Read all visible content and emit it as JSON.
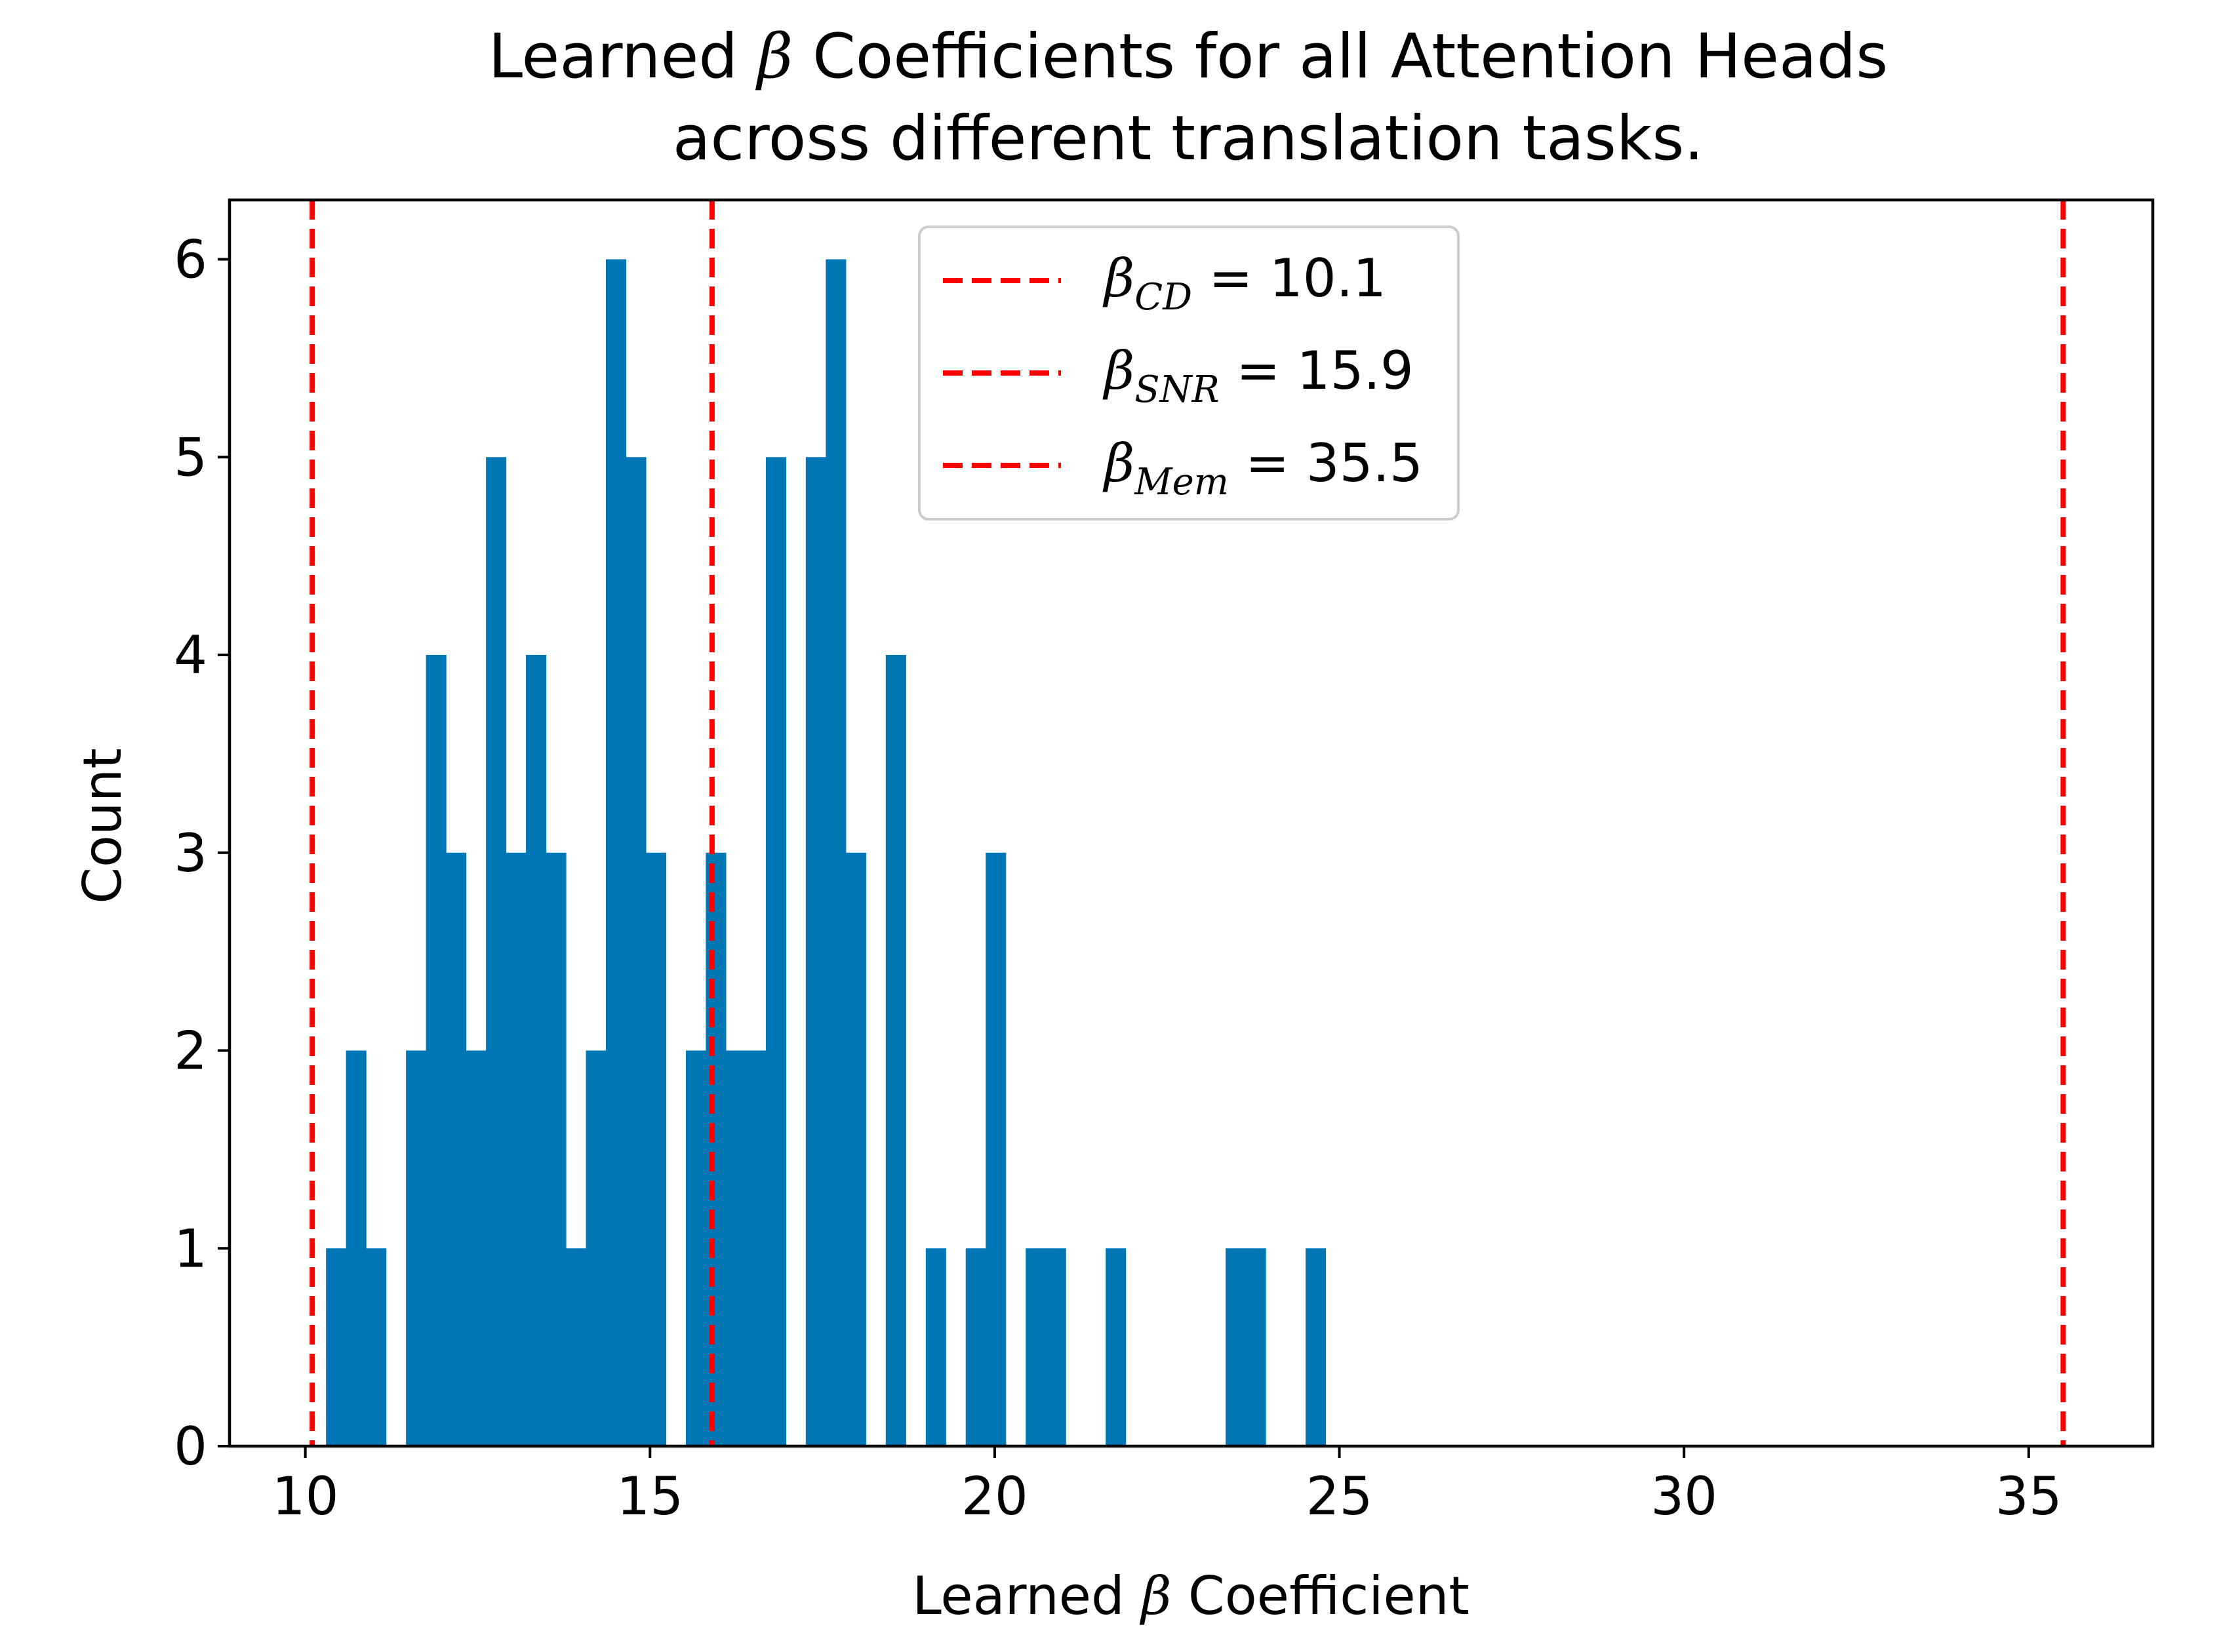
{
  "chart_data": {
    "type": "histogram",
    "title_line1_a": "Learned ",
    "title_line1_beta": "β",
    "title_line1_b": " Coefficients for all Attention Heads",
    "title_line2": "across different translation tasks.",
    "xlabel_a": "Learned ",
    "xlabel_beta": "β",
    "xlabel_b": " Coefficient",
    "ylabel": "Count",
    "xlim": [
      8.9,
      36.8
    ],
    "ylim": [
      0,
      6.3
    ],
    "xticks": [
      10,
      15,
      20,
      25,
      30,
      35
    ],
    "yticks": [
      0,
      1,
      2,
      3,
      4,
      5,
      6
    ],
    "bin_width": 0.29,
    "bar_color": "#0077b4",
    "bins": [
      {
        "x0": 10.3,
        "count": 1
      },
      {
        "x0": 10.59,
        "count": 2
      },
      {
        "x0": 10.88,
        "count": 1
      },
      {
        "x0": 11.17,
        "count": 0
      },
      {
        "x0": 11.46,
        "count": 2
      },
      {
        "x0": 11.75,
        "count": 4
      },
      {
        "x0": 12.04,
        "count": 3
      },
      {
        "x0": 12.33,
        "count": 2
      },
      {
        "x0": 12.62,
        "count": 5
      },
      {
        "x0": 12.91,
        "count": 3
      },
      {
        "x0": 13.2,
        "count": 4
      },
      {
        "x0": 13.49,
        "count": 3
      },
      {
        "x0": 13.78,
        "count": 1
      },
      {
        "x0": 14.07,
        "count": 2
      },
      {
        "x0": 14.36,
        "count": 6
      },
      {
        "x0": 14.65,
        "count": 5
      },
      {
        "x0": 14.94,
        "count": 3
      },
      {
        "x0": 15.23,
        "count": 0
      },
      {
        "x0": 15.52,
        "count": 2
      },
      {
        "x0": 15.81,
        "count": 3
      },
      {
        "x0": 16.1,
        "count": 2
      },
      {
        "x0": 16.39,
        "count": 2
      },
      {
        "x0": 16.68,
        "count": 5
      },
      {
        "x0": 16.97,
        "count": 0
      },
      {
        "x0": 17.26,
        "count": 5
      },
      {
        "x0": 17.55,
        "count": 6
      },
      {
        "x0": 17.84,
        "count": 3
      },
      {
        "x0": 18.13,
        "count": 0
      },
      {
        "x0": 18.42,
        "count": 4
      },
      {
        "x0": 18.71,
        "count": 0
      },
      {
        "x0": 19.0,
        "count": 1
      },
      {
        "x0": 19.29,
        "count": 0
      },
      {
        "x0": 19.58,
        "count": 1
      },
      {
        "x0": 19.87,
        "count": 3
      },
      {
        "x0": 20.16,
        "count": 0
      },
      {
        "x0": 20.45,
        "count": 1
      },
      {
        "x0": 20.74,
        "count": 1
      },
      {
        "x0": 21.03,
        "count": 0
      },
      {
        "x0": 21.32,
        "count": 0
      },
      {
        "x0": 21.61,
        "count": 1
      },
      {
        "x0": 21.9,
        "count": 0
      },
      {
        "x0": 22.19,
        "count": 0
      },
      {
        "x0": 22.48,
        "count": 0
      },
      {
        "x0": 22.77,
        "count": 0
      },
      {
        "x0": 23.06,
        "count": 0
      },
      {
        "x0": 23.35,
        "count": 1
      },
      {
        "x0": 23.64,
        "count": 1
      },
      {
        "x0": 23.93,
        "count": 0
      },
      {
        "x0": 24.22,
        "count": 0
      },
      {
        "x0": 24.51,
        "count": 1
      }
    ],
    "vlines": [
      {
        "x": 10.1,
        "sub": "CD",
        "value_text": "10.1"
      },
      {
        "x": 15.9,
        "sub": "SNR",
        "value_text": "15.9"
      },
      {
        "x": 35.5,
        "sub": "Mem",
        "value_text": "35.5"
      }
    ],
    "vline_color": "#ff0000",
    "legend_beta": "β",
    "legend_equals": " = ",
    "legend_placement": "top-center"
  }
}
